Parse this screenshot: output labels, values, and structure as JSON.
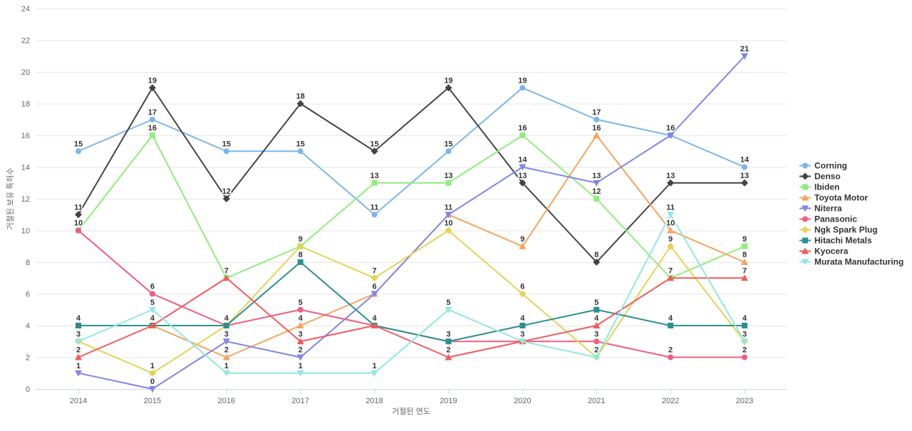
{
  "chart_data": {
    "type": "line",
    "title": "",
    "xlabel": "거절된 연도",
    "ylabel": "거절된 보유 특허수",
    "x": [
      "2014",
      "2015",
      "2016",
      "2017",
      "2018",
      "2019",
      "2020",
      "2021",
      "2022",
      "2023"
    ],
    "ylim": [
      0,
      24
    ],
    "yticks": [
      0,
      2,
      4,
      6,
      8,
      10,
      12,
      14,
      16,
      18,
      20,
      22,
      24
    ],
    "grid": true,
    "legend_position": "right",
    "series": [
      {
        "name": "Corning",
        "color": "#7cb5ec",
        "marker": "circle",
        "values": [
          15,
          17,
          15,
          15,
          11,
          15,
          19,
          17,
          16,
          14
        ]
      },
      {
        "name": "Denso",
        "color": "#434348",
        "marker": "diamond",
        "values": [
          11,
          19,
          12,
          18,
          15,
          19,
          13,
          8,
          13,
          13
        ]
      },
      {
        "name": "Ibiden",
        "color": "#90ed7d",
        "marker": "square",
        "values": [
          10,
          16,
          7,
          9,
          13,
          13,
          16,
          12,
          7,
          9
        ]
      },
      {
        "name": "Toyota Motor",
        "color": "#f7a35c",
        "marker": "triangle",
        "values": [
          4,
          4,
          2,
          4,
          6,
          11,
          9,
          16,
          10,
          8
        ]
      },
      {
        "name": "Niterra",
        "color": "#8085e9",
        "marker": "triangle-down",
        "values": [
          1,
          0,
          3,
          2,
          6,
          11,
          14,
          13,
          16,
          21
        ]
      },
      {
        "name": "Panasonic",
        "color": "#f15c80",
        "marker": "circle",
        "values": [
          10,
          6,
          4,
          5,
          4,
          3,
          3,
          3,
          2,
          2
        ]
      },
      {
        "name": "Ngk Spark Plug",
        "color": "#e4d354",
        "marker": "diamond",
        "values": [
          3,
          1,
          4,
          9,
          7,
          10,
          6,
          2,
          9,
          3
        ]
      },
      {
        "name": "Hitachi Metals",
        "color": "#2b908f",
        "marker": "square",
        "values": [
          4,
          4,
          4,
          8,
          4,
          3,
          4,
          5,
          4,
          4
        ]
      },
      {
        "name": "Kyocera",
        "color": "#f45b5b",
        "marker": "triangle",
        "values": [
          2,
          4,
          7,
          3,
          4,
          2,
          3,
          4,
          7,
          7
        ]
      },
      {
        "name": "Murata Manufacturing",
        "color": "#91e8e1",
        "marker": "triangle-down",
        "values": [
          3,
          5,
          1,
          1,
          1,
          5,
          3,
          2,
          11,
          3
        ]
      }
    ]
  }
}
